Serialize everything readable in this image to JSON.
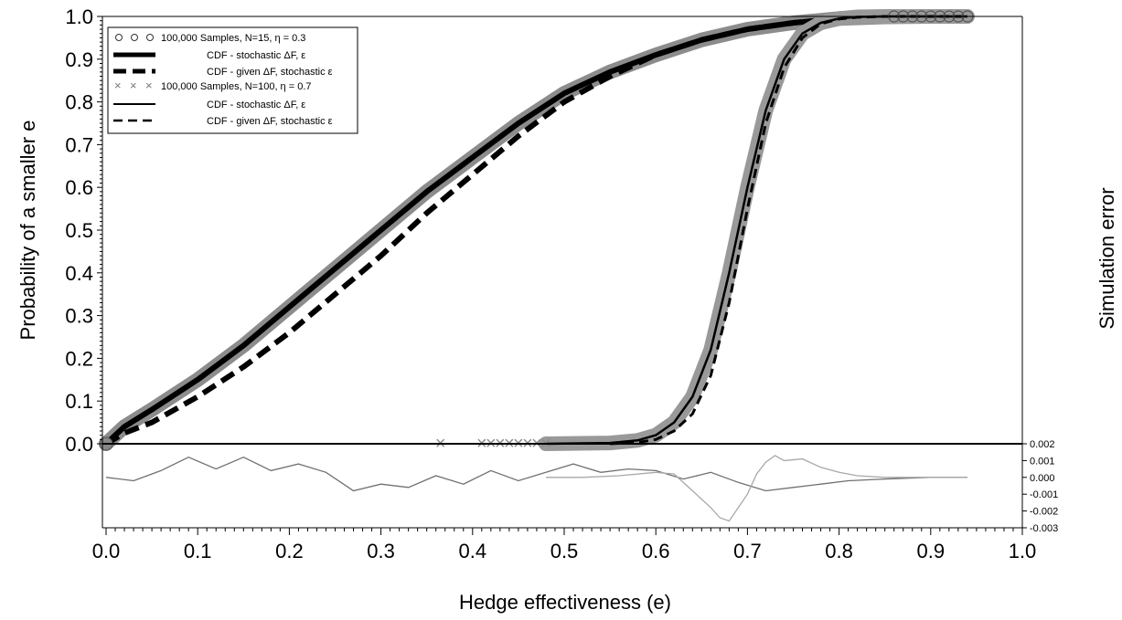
{
  "chart_data": {
    "type": "line",
    "xlabel": "Hedge effectiveness (e)",
    "ylabel": "Probability of a smaller e",
    "ylabel_right": "Simulation error",
    "xlim": [
      0.0,
      1.0
    ],
    "ylim": [
      0.0,
      1.0
    ],
    "error_ylim": [
      -0.003,
      0.002
    ],
    "x_ticks": [
      "0.0",
      "0.1",
      "0.2",
      "0.3",
      "0.4",
      "0.5",
      "0.6",
      "0.7",
      "0.8",
      "0.9",
      "1.0"
    ],
    "y_ticks": [
      "0.0",
      "0.1",
      "0.2",
      "0.3",
      "0.4",
      "0.5",
      "0.6",
      "0.7",
      "0.8",
      "0.9",
      "1.0"
    ],
    "error_ticks": [
      "0.002",
      "0.001",
      "0.000",
      "-0.001",
      "-0.002",
      "-0.003"
    ],
    "legend_position": "top-left",
    "legend": [
      "100,000 Samples, N=15, η = 0.3",
      "CDF - stochastic ΔF, ε",
      "CDF - given ΔF, stochastic ε",
      "100,000 Samples, N=100, η = 0.7",
      "CDF - stochastic ΔF, ε",
      "CDF - given ΔF, stochastic ε"
    ],
    "series": [
      {
        "name": "100,000 Samples, N=15, η = 0.3",
        "color": "#8c8c8c",
        "x": [
          0.0,
          0.02,
          0.05,
          0.1,
          0.15,
          0.2,
          0.25,
          0.3,
          0.35,
          0.4,
          0.45,
          0.5,
          0.55,
          0.6,
          0.65,
          0.7,
          0.75,
          0.8,
          0.85,
          0.9,
          0.94
        ],
        "y": [
          0.0,
          0.04,
          0.08,
          0.15,
          0.23,
          0.32,
          0.41,
          0.5,
          0.59,
          0.67,
          0.75,
          0.82,
          0.87,
          0.91,
          0.945,
          0.97,
          0.985,
          0.995,
          0.999,
          1.0,
          1.0
        ]
      },
      {
        "name": "CDF - stochastic ΔF, ε",
        "color": "#000000",
        "x": [
          0.0,
          0.02,
          0.05,
          0.1,
          0.15,
          0.2,
          0.25,
          0.3,
          0.35,
          0.4,
          0.45,
          0.5,
          0.55,
          0.6,
          0.65,
          0.7,
          0.75,
          0.8,
          0.85,
          0.9,
          0.94
        ],
        "y": [
          0.0,
          0.04,
          0.08,
          0.15,
          0.23,
          0.32,
          0.41,
          0.5,
          0.59,
          0.67,
          0.75,
          0.82,
          0.87,
          0.91,
          0.945,
          0.97,
          0.985,
          0.995,
          0.999,
          1.0,
          1.0
        ]
      },
      {
        "name": "CDF - given ΔF, stochastic ε",
        "color": "#000000",
        "x": [
          0.0,
          0.02,
          0.05,
          0.1,
          0.15,
          0.2,
          0.25,
          0.3,
          0.35,
          0.4,
          0.45,
          0.5,
          0.55,
          0.6,
          0.65,
          0.7,
          0.75,
          0.8,
          0.85,
          0.9,
          0.94
        ],
        "y": [
          0.0,
          0.025,
          0.05,
          0.11,
          0.18,
          0.26,
          0.35,
          0.44,
          0.54,
          0.63,
          0.72,
          0.8,
          0.86,
          0.91,
          0.945,
          0.97,
          0.985,
          0.995,
          0.999,
          1.0,
          1.0
        ]
      },
      {
        "name": "100,000 Samples, N=100, η = 0.7",
        "color": "#999999",
        "x": [
          0.48,
          0.55,
          0.58,
          0.6,
          0.62,
          0.64,
          0.66,
          0.68,
          0.7,
          0.72,
          0.74,
          0.76,
          0.78,
          0.8,
          0.82,
          0.85,
          0.9,
          0.94
        ],
        "y": [
          0.0,
          0.002,
          0.008,
          0.02,
          0.05,
          0.11,
          0.22,
          0.4,
          0.6,
          0.78,
          0.9,
          0.96,
          0.985,
          0.995,
          0.999,
          1.0,
          1.0,
          1.0
        ]
      },
      {
        "name": "CDF - stochastic ΔF, ε",
        "color": "#000000",
        "x": [
          0.48,
          0.55,
          0.58,
          0.6,
          0.62,
          0.64,
          0.66,
          0.68,
          0.7,
          0.72,
          0.74,
          0.76,
          0.78,
          0.8,
          0.82,
          0.85,
          0.9,
          0.94
        ],
        "y": [
          0.0,
          0.002,
          0.008,
          0.02,
          0.05,
          0.11,
          0.22,
          0.4,
          0.6,
          0.78,
          0.9,
          0.96,
          0.985,
          0.995,
          0.999,
          1.0,
          1.0,
          1.0
        ]
      },
      {
        "name": "CDF - given ΔF, stochastic ε",
        "color": "#000000",
        "x": [
          0.55,
          0.58,
          0.6,
          0.62,
          0.64,
          0.66,
          0.68,
          0.7,
          0.72,
          0.74,
          0.76,
          0.78,
          0.8,
          0.82,
          0.85,
          0.9,
          0.94
        ],
        "y": [
          0.0,
          0.003,
          0.01,
          0.03,
          0.07,
          0.16,
          0.33,
          0.55,
          0.75,
          0.88,
          0.95,
          0.983,
          0.994,
          0.998,
          1.0,
          1.0,
          1.0
        ]
      }
    ],
    "error_series": [
      {
        "color": "#707070",
        "x": [
          0.0,
          0.03,
          0.06,
          0.09,
          0.12,
          0.15,
          0.18,
          0.21,
          0.24,
          0.27,
          0.3,
          0.33,
          0.36,
          0.39,
          0.42,
          0.45,
          0.48,
          0.51,
          0.54,
          0.57,
          0.6,
          0.63,
          0.66,
          0.69,
          0.72,
          0.75,
          0.78,
          0.81,
          0.85,
          0.9,
          0.94
        ],
        "y": [
          0.0,
          -0.0002,
          0.0004,
          0.0012,
          0.0005,
          0.0012,
          0.0004,
          0.0008,
          0.0003,
          -0.0008,
          -0.0004,
          -0.0006,
          0.0001,
          -0.0004,
          0.0004,
          -0.0002,
          0.0003,
          0.0008,
          0.0003,
          0.0005,
          0.0004,
          -0.0001,
          0.0003,
          -0.0003,
          -0.0008,
          -0.0006,
          -0.0004,
          -0.0002,
          -0.0001,
          0.0,
          0.0
        ]
      },
      {
        "color": "#a8a8a8",
        "x": [
          0.48,
          0.52,
          0.56,
          0.6,
          0.62,
          0.64,
          0.66,
          0.67,
          0.68,
          0.69,
          0.7,
          0.71,
          0.72,
          0.73,
          0.74,
          0.76,
          0.78,
          0.8,
          0.82,
          0.85,
          0.9,
          0.94
        ],
        "y": [
          0.0,
          0.0,
          0.0001,
          0.0003,
          0.0002,
          -0.0008,
          -0.0018,
          -0.0024,
          -0.0026,
          -0.0018,
          -0.001,
          0.0002,
          0.0009,
          0.0013,
          0.001,
          0.0011,
          0.0006,
          0.0003,
          0.0001,
          0.0,
          0.0,
          0.0
        ]
      }
    ]
  }
}
